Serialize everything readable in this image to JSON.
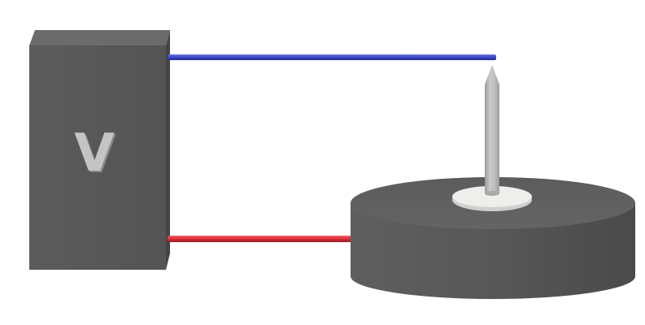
{
  "voltage_source": {
    "label": "V",
    "body_color": "#5a5a5a",
    "label_color": "#c4c4c4"
  },
  "wires": {
    "positive_color": "#3a46c8",
    "negative_color": "#dc2e38"
  },
  "sample_disk": {
    "color": "#575757"
  },
  "probe": {
    "color": "#bdbdbc",
    "washer_color": "#eeeeec"
  }
}
